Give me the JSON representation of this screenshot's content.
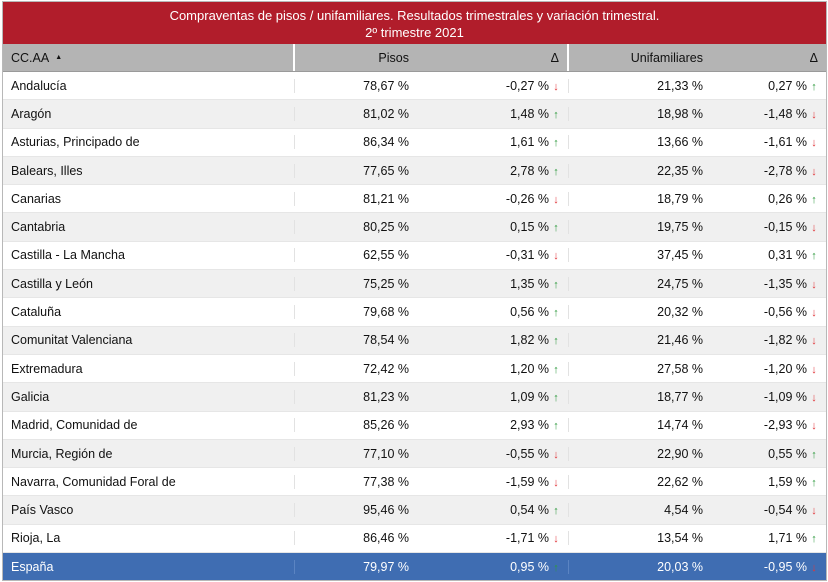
{
  "title": {
    "line1": "Compraventas de pisos / unifamiliares. Resultados trimestrales  y variación trimestral.",
    "line2": "2º trimestre 2021"
  },
  "columns": {
    "ccaa": "CC.AA",
    "pisos": "Pisos",
    "delta1": "Δ",
    "unifamiliares": "Unifamiliares",
    "delta2": "Δ"
  },
  "rows": [
    {
      "name": "Andalucía",
      "pisos": "78,67 %",
      "d1": "-0,27 %",
      "d1dir": "down",
      "uni": "21,33 %",
      "d2": "0,27 %",
      "d2dir": "up"
    },
    {
      "name": "Aragón",
      "pisos": "81,02 %",
      "d1": "1,48 %",
      "d1dir": "up",
      "uni": "18,98 %",
      "d2": "-1,48 %",
      "d2dir": "down"
    },
    {
      "name": "Asturias, Principado de",
      "pisos": "86,34 %",
      "d1": "1,61 %",
      "d1dir": "up",
      "uni": "13,66 %",
      "d2": "-1,61 %",
      "d2dir": "down"
    },
    {
      "name": "Balears, Illes",
      "pisos": "77,65 %",
      "d1": "2,78 %",
      "d1dir": "up",
      "uni": "22,35 %",
      "d2": "-2,78 %",
      "d2dir": "down"
    },
    {
      "name": "Canarias",
      "pisos": "81,21 %",
      "d1": "-0,26 %",
      "d1dir": "down",
      "uni": "18,79 %",
      "d2": "0,26 %",
      "d2dir": "up"
    },
    {
      "name": "Cantabria",
      "pisos": "80,25 %",
      "d1": "0,15 %",
      "d1dir": "up",
      "uni": "19,75 %",
      "d2": "-0,15 %",
      "d2dir": "down"
    },
    {
      "name": "Castilla - La Mancha",
      "pisos": "62,55 %",
      "d1": "-0,31 %",
      "d1dir": "down",
      "uni": "37,45 %",
      "d2": "0,31 %",
      "d2dir": "up"
    },
    {
      "name": "Castilla y León",
      "pisos": "75,25 %",
      "d1": "1,35 %",
      "d1dir": "up",
      "uni": "24,75 %",
      "d2": "-1,35 %",
      "d2dir": "down"
    },
    {
      "name": "Cataluña",
      "pisos": "79,68 %",
      "d1": "0,56 %",
      "d1dir": "up",
      "uni": "20,32 %",
      "d2": "-0,56 %",
      "d2dir": "down"
    },
    {
      "name": "Comunitat Valenciana",
      "pisos": "78,54 %",
      "d1": "1,82 %",
      "d1dir": "up",
      "uni": "21,46 %",
      "d2": "-1,82 %",
      "d2dir": "down"
    },
    {
      "name": "Extremadura",
      "pisos": "72,42 %",
      "d1": "1,20 %",
      "d1dir": "up",
      "uni": "27,58 %",
      "d2": "-1,20 %",
      "d2dir": "down"
    },
    {
      "name": "Galicia",
      "pisos": "81,23 %",
      "d1": "1,09 %",
      "d1dir": "up",
      "uni": "18,77 %",
      "d2": "-1,09 %",
      "d2dir": "down"
    },
    {
      "name": "Madrid, Comunidad de",
      "pisos": "85,26 %",
      "d1": "2,93 %",
      "d1dir": "up",
      "uni": "14,74 %",
      "d2": "-2,93 %",
      "d2dir": "down"
    },
    {
      "name": "Murcia, Región de",
      "pisos": "77,10 %",
      "d1": "-0,55 %",
      "d1dir": "down",
      "uni": "22,90 %",
      "d2": "0,55 %",
      "d2dir": "up"
    },
    {
      "name": "Navarra, Comunidad Foral de",
      "pisos": "77,38 %",
      "d1": "-1,59 %",
      "d1dir": "down",
      "uni": "22,62 %",
      "d2": "1,59 %",
      "d2dir": "up"
    },
    {
      "name": "País Vasco",
      "pisos": "95,46 %",
      "d1": "0,54 %",
      "d1dir": "up",
      "uni": "4,54 %",
      "d2": "-0,54 %",
      "d2dir": "down"
    },
    {
      "name": "Rioja, La",
      "pisos": "86,46 %",
      "d1": "-1,71 %",
      "d1dir": "down",
      "uni": "13,54 %",
      "d2": "1,71 %",
      "d2dir": "up"
    }
  ],
  "total": {
    "name": "España",
    "pisos": "79,97 %",
    "d1": "0,95 %",
    "d1dir": "up",
    "uni": "20,03 %",
    "d2": "-0,95 %",
    "d2dir": "down"
  },
  "colors": {
    "title_bg": "#b11d2b",
    "header_bg": "#b4b4b4",
    "total_bg": "#3f6db2",
    "up_arrow": "#2e9a3e",
    "down_arrow": "#e0363a"
  },
  "icons": {
    "up": "arrow-up-icon",
    "down": "arrow-down-icon",
    "sort": "sort-ascending-icon"
  }
}
